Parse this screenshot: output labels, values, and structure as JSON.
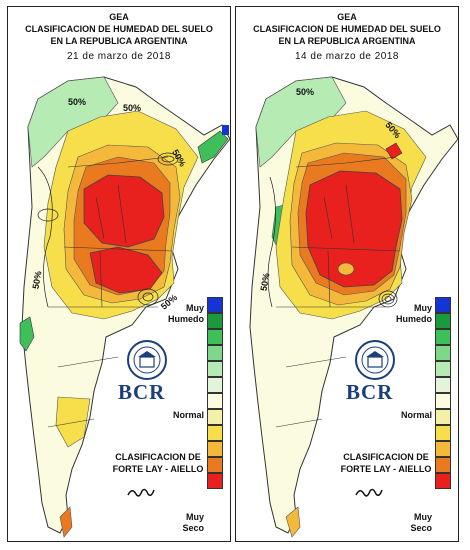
{
  "panels": [
    {
      "title": "GEA",
      "subtitle_1": "CLASIFICACION DE HUMEDAD DEL SUELO",
      "subtitle_2": "EN LA REPUBLICA ARGENTINA",
      "date": "21 de marzo de 2018",
      "contour_labels": [
        "50%",
        "50%",
        "50%",
        "50%",
        "50%"
      ]
    },
    {
      "title": "GEA",
      "subtitle_1": "CLASIFICACION DE HUMEDAD DEL SUELO",
      "subtitle_2": "EN LA REPUBLICA ARGENTINA",
      "date": "14 de marzo de 2018",
      "contour_labels": [
        "50%",
        "50%",
        "50%"
      ]
    }
  ],
  "legend": {
    "top_label": [
      "Muy",
      "Humedo"
    ],
    "middle_label": "Normal",
    "bottom_label": [
      "Muy",
      "Seco"
    ],
    "colors_top_to_bottom": [
      "#1534d4",
      "#1a9a3c",
      "#3fbf5a",
      "#7fd88a",
      "#b7ebb4",
      "#e3f4da",
      "#fbfbe0",
      "#f5f0a8",
      "#f6df4a",
      "#f4b93a",
      "#ea7a1f",
      "#e8201e"
    ]
  },
  "classification": [
    "CLASIFICACION DE",
    "FORTE LAY - AIELLO"
  ],
  "brand": "BCR",
  "colors": {
    "very_dry": "#e8201e",
    "dry": "#ea7a1f",
    "mod_dry": "#f4b93a",
    "slight_dry": "#f6df4a",
    "normal": "#fbfbe0",
    "wet": "#b7ebb4",
    "very_wet": "#1534d4"
  }
}
